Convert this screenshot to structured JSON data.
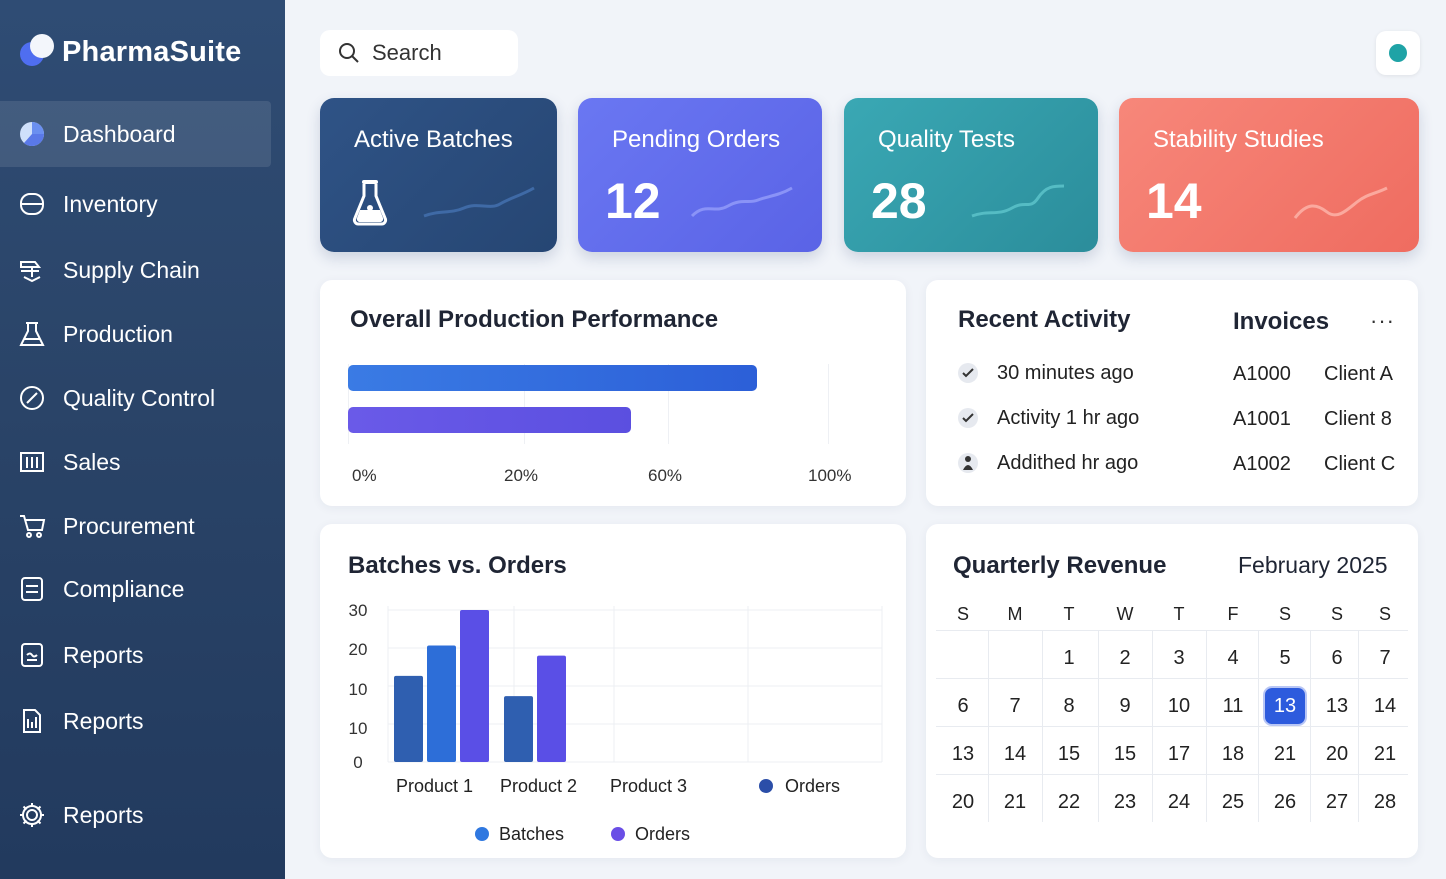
{
  "app": {
    "name": "PharmaSuite"
  },
  "sidebar": {
    "items": [
      {
        "label": "Dashboard",
        "icon": "pie-chart-icon",
        "active": true
      },
      {
        "label": "Inventory",
        "icon": "cylinder-icon"
      },
      {
        "label": "Supply Chain",
        "icon": "supply-chain-icon"
      },
      {
        "label": "Production",
        "icon": "flask-icon"
      },
      {
        "label": "Quality Control",
        "icon": "quality-check-icon"
      },
      {
        "label": "Sales",
        "icon": "columns-icon"
      },
      {
        "label": "Procurement",
        "icon": "cart-icon"
      },
      {
        "label": "Compliance",
        "icon": "document-icon"
      },
      {
        "label": "Reports",
        "icon": "report-icon"
      },
      {
        "label": "Reports",
        "icon": "files-icon"
      },
      {
        "label": "Reports",
        "icon": "gear-icon"
      }
    ]
  },
  "search": {
    "placeholder": "Search"
  },
  "status": {
    "color": "#1fa3a6"
  },
  "stats": [
    {
      "title": "Active Batches",
      "value": "",
      "color": "#2b4b7c"
    },
    {
      "title": "Pending Orders",
      "value": "12",
      "color": "#6270ee"
    },
    {
      "title": "Quality Tests",
      "value": "28",
      "color": "#3298a6"
    },
    {
      "title": "Stability Studies",
      "value": "14",
      "color": "#f37a6d"
    }
  ],
  "performance": {
    "title": "Overall Production Performance",
    "ticks": [
      "0%",
      "20%",
      "60%",
      "100%"
    ],
    "bars": [
      {
        "value": 0.78,
        "color": "#3a7be4"
      },
      {
        "value": 0.54,
        "color": "#6a5ae8"
      }
    ]
  },
  "activity": {
    "title": "Recent Activity",
    "items": [
      {
        "text": "30 minutes ago",
        "icon": "check-icon"
      },
      {
        "text": "Activity 1 hr ago",
        "icon": "check-icon"
      },
      {
        "text": "Addithed hr ago",
        "icon": "user-icon"
      }
    ]
  },
  "invoices": {
    "title": "Invoices",
    "more": "···",
    "rows": [
      {
        "id": "A1000",
        "client": "Client A"
      },
      {
        "id": "A1001",
        "client": "Client 8"
      },
      {
        "id": "A1002",
        "client": "Client C"
      }
    ]
  },
  "chart_data": {
    "type": "bar",
    "title": "Batches vs. Orders",
    "categories": [
      "Product 1",
      "Product 2",
      "Product 3"
    ],
    "y_tick_labels": [
      "30",
      "20",
      "10",
      "10",
      "0"
    ],
    "ylim": [
      0,
      30
    ],
    "series": [
      {
        "name": "Batches",
        "color": "#2f5fb0",
        "values": [
          17,
          13,
          null
        ]
      },
      {
        "name": "",
        "color": "#2d6ed8",
        "values": [
          23,
          null,
          null
        ]
      },
      {
        "name": "Orders",
        "color": "#5a4fe6",
        "values": [
          30,
          21,
          null
        ]
      }
    ],
    "inline_legend": "Orders",
    "legend": [
      "Batches",
      "Orders"
    ],
    "legend_position": "bottom"
  },
  "revenue": {
    "title": "Quarterly Revenue",
    "month": "February 2025",
    "weekdays": [
      "S",
      "M",
      "T",
      "W",
      "T",
      "F",
      "S",
      "S",
      "S"
    ],
    "weeks": [
      [
        "",
        "",
        "1",
        "2",
        "3",
        "4",
        "5",
        "6",
        "7"
      ],
      [
        "6",
        "7",
        "8",
        "9",
        "10",
        "11",
        "13",
        "13",
        "14"
      ],
      [
        "13",
        "14",
        "15",
        "15",
        "17",
        "18",
        "21",
        "20",
        "21"
      ],
      [
        "20",
        "21",
        "22",
        "23",
        "24",
        "25",
        "26",
        "27",
        "28"
      ]
    ],
    "selected": {
      "week": 1,
      "day": 6
    }
  }
}
